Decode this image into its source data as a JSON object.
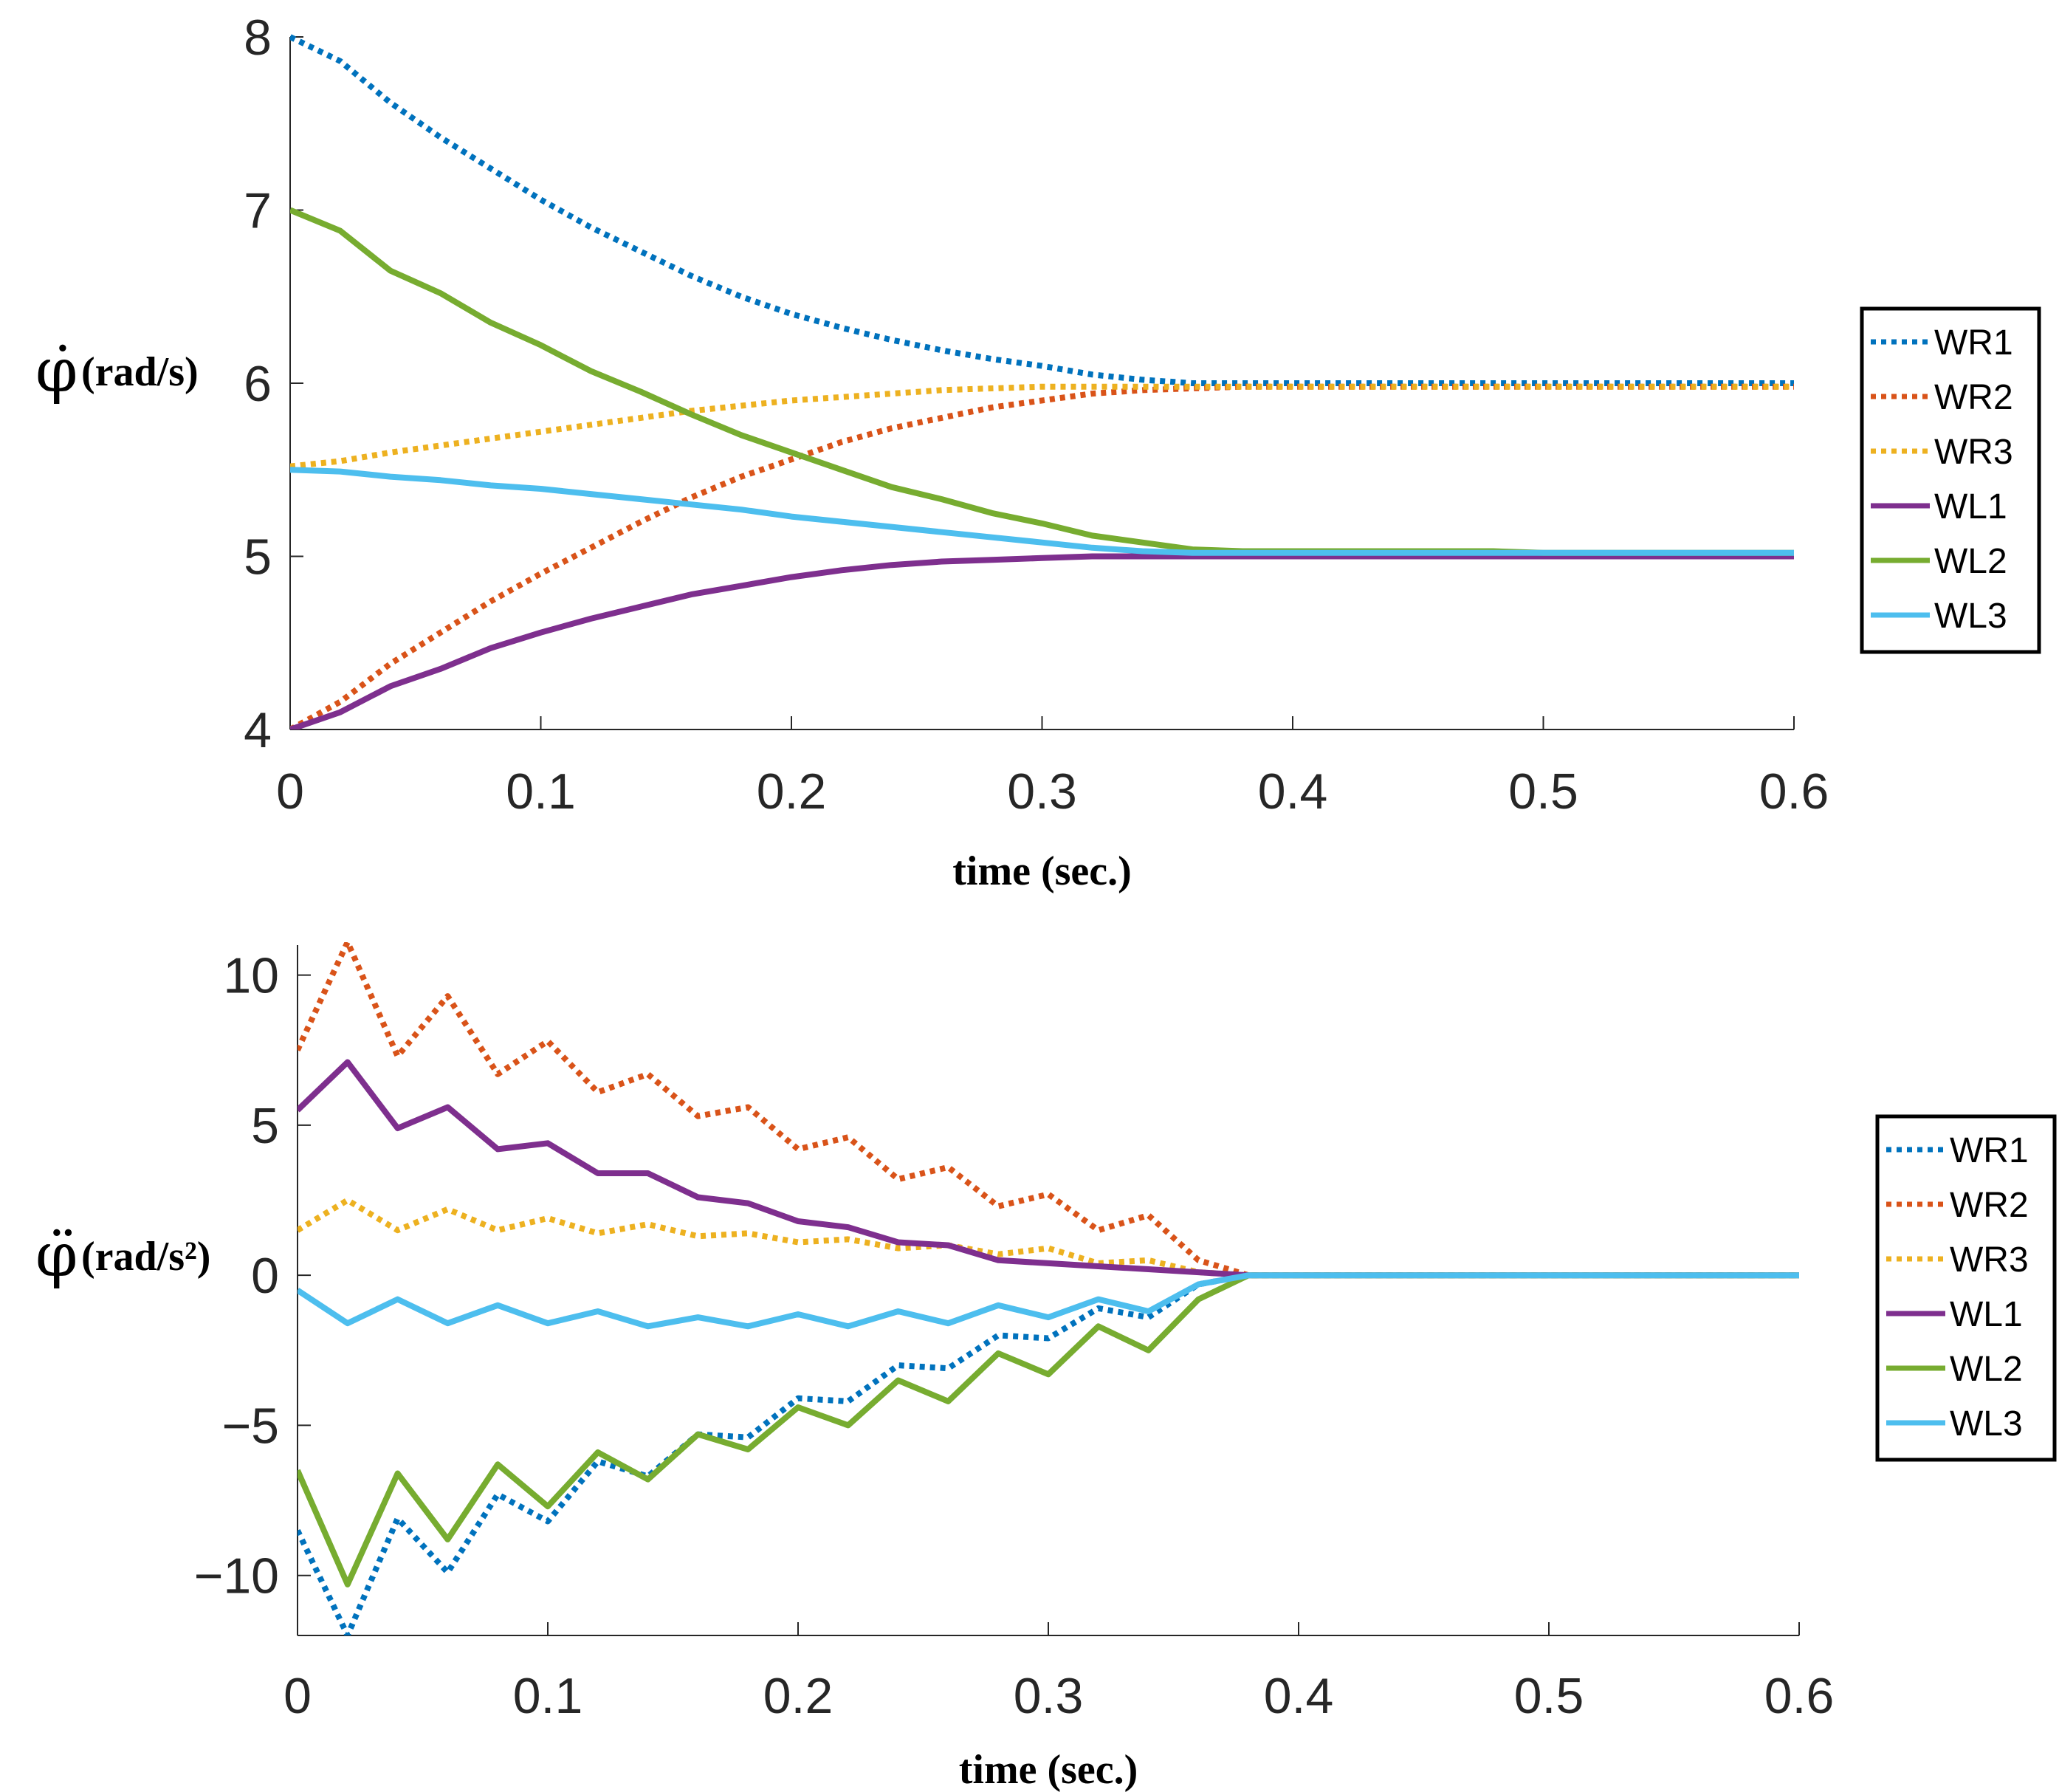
{
  "colors": {
    "WR1": "#0072BD",
    "WR2": "#D95319",
    "WR3": "#EDB120",
    "WL1": "#7E2F8E",
    "WL2": "#77AC30",
    "WL3": "#4DBEEE",
    "axis": "#262626",
    "legend_border": "#000000"
  },
  "chart_data": [
    {
      "type": "line",
      "title": "",
      "xlabel": "time (sec.)",
      "ylabel_symbol": "φ̇",
      "ylabel_unit": "(rad/s)",
      "xlim": [
        0,
        0.6
      ],
      "ylim": [
        4,
        8
      ],
      "xticks": [
        0,
        0.1,
        0.2,
        0.3,
        0.4,
        0.5,
        0.6
      ],
      "xtick_labels": [
        "0",
        "0.1",
        "0.2",
        "0.3",
        "0.4",
        "0.5",
        "0.6"
      ],
      "yticks": [
        4,
        5,
        6,
        7,
        8
      ],
      "ytick_labels": [
        "4",
        "5",
        "6",
        "7",
        "8"
      ],
      "grid": false,
      "legend_position": "right",
      "x": [
        0,
        0.02,
        0.04,
        0.06,
        0.08,
        0.1,
        0.12,
        0.14,
        0.16,
        0.18,
        0.2,
        0.22,
        0.24,
        0.26,
        0.28,
        0.3,
        0.32,
        0.34,
        0.36,
        0.38,
        0.4,
        0.42,
        0.44,
        0.46,
        0.48,
        0.5,
        0.52,
        0.54,
        0.56,
        0.58,
        0.6
      ],
      "series": [
        {
          "name": "WR1",
          "style": "dotted",
          "values": [
            8.0,
            7.86,
            7.62,
            7.42,
            7.24,
            7.06,
            6.9,
            6.76,
            6.62,
            6.5,
            6.4,
            6.32,
            6.25,
            6.19,
            6.14,
            6.1,
            6.05,
            6.02,
            6.0,
            6.0,
            6.0,
            6.0,
            6.0,
            6.0,
            6.0,
            6.0,
            6.0,
            6.0,
            6.0,
            6.0,
            6.0
          ]
        },
        {
          "name": "WR2",
          "style": "dotted",
          "values": [
            4.0,
            4.16,
            4.38,
            4.56,
            4.74,
            4.9,
            5.05,
            5.2,
            5.34,
            5.46,
            5.56,
            5.66,
            5.74,
            5.8,
            5.86,
            5.9,
            5.94,
            5.96,
            5.97,
            5.98,
            5.98,
            5.98,
            5.98,
            5.98,
            5.98,
            5.98,
            5.98,
            5.98,
            5.98,
            5.98,
            5.98
          ]
        },
        {
          "name": "WR3",
          "style": "dotted",
          "values": [
            5.52,
            5.55,
            5.6,
            5.64,
            5.68,
            5.72,
            5.76,
            5.8,
            5.84,
            5.87,
            5.9,
            5.92,
            5.94,
            5.96,
            5.97,
            5.98,
            5.98,
            5.98,
            5.98,
            5.98,
            5.98,
            5.98,
            5.98,
            5.98,
            5.98,
            5.98,
            5.98,
            5.98,
            5.98,
            5.98,
            5.98
          ]
        },
        {
          "name": "WL1",
          "style": "solid",
          "values": [
            4.0,
            4.1,
            4.25,
            4.35,
            4.47,
            4.56,
            4.64,
            4.71,
            4.78,
            4.83,
            4.88,
            4.92,
            4.95,
            4.97,
            4.98,
            4.99,
            5.0,
            5.0,
            5.0,
            5.0,
            5.0,
            5.0,
            5.0,
            5.0,
            5.0,
            5.0,
            5.0,
            5.0,
            5.0,
            5.0,
            5.0
          ]
        },
        {
          "name": "WL2",
          "style": "solid",
          "values": [
            7.0,
            6.88,
            6.65,
            6.52,
            6.35,
            6.22,
            6.07,
            5.95,
            5.82,
            5.7,
            5.6,
            5.5,
            5.4,
            5.33,
            5.25,
            5.19,
            5.12,
            5.08,
            5.04,
            5.03,
            5.03,
            5.03,
            5.03,
            5.03,
            5.03,
            5.02,
            5.02,
            5.02,
            5.02,
            5.02,
            5.02
          ]
        },
        {
          "name": "WL3",
          "style": "solid",
          "values": [
            5.5,
            5.49,
            5.46,
            5.44,
            5.41,
            5.39,
            5.36,
            5.33,
            5.3,
            5.27,
            5.23,
            5.2,
            5.17,
            5.14,
            5.11,
            5.08,
            5.05,
            5.03,
            5.02,
            5.02,
            5.02,
            5.02,
            5.02,
            5.02,
            5.02,
            5.02,
            5.02,
            5.02,
            5.02,
            5.02,
            5.02
          ]
        }
      ]
    },
    {
      "type": "line",
      "title": "",
      "xlabel": "time (sec.)",
      "ylabel_symbol": "φ̈",
      "ylabel_unit": "(rad/s²)",
      "xlim": [
        0,
        0.6
      ],
      "ylim": [
        -12,
        11
      ],
      "xticks": [
        0,
        0.1,
        0.2,
        0.3,
        0.4,
        0.5,
        0.6
      ],
      "xtick_labels": [
        "0",
        "0.1",
        "0.2",
        "0.3",
        "0.4",
        "0.5",
        "0.6"
      ],
      "yticks": [
        -10,
        -5,
        0,
        5,
        10
      ],
      "ytick_labels": [
        "−10",
        "−5",
        "0",
        "5",
        "10"
      ],
      "grid": false,
      "legend_position": "right",
      "x": [
        0,
        0.02,
        0.04,
        0.06,
        0.08,
        0.1,
        0.12,
        0.14,
        0.16,
        0.18,
        0.2,
        0.22,
        0.24,
        0.26,
        0.28,
        0.3,
        0.32,
        0.34,
        0.36,
        0.38,
        0.4,
        0.42,
        0.44,
        0.46,
        0.48,
        0.5,
        0.52,
        0.54,
        0.56,
        0.58,
        0.6
      ],
      "series": [
        {
          "name": "WR1",
          "style": "dotted",
          "values": [
            -8.5,
            -12.0,
            -8.1,
            -9.9,
            -7.3,
            -8.2,
            -6.2,
            -6.7,
            -5.3,
            -5.4,
            -4.1,
            -4.2,
            -3.0,
            -3.1,
            -2.0,
            -2.1,
            -1.1,
            -1.4,
            -0.3,
            0.0,
            0.0,
            0.0,
            0.0,
            0.0,
            0.0,
            0.0,
            0.0,
            0.0,
            0.0,
            0.0,
            0.0
          ]
        },
        {
          "name": "WR2",
          "style": "dotted",
          "values": [
            7.5,
            11.1,
            7.3,
            9.3,
            6.7,
            7.8,
            6.1,
            6.7,
            5.3,
            5.6,
            4.2,
            4.6,
            3.2,
            3.6,
            2.3,
            2.7,
            1.5,
            2.0,
            0.5,
            0.0,
            0.0,
            0.0,
            0.0,
            0.0,
            0.0,
            0.0,
            0.0,
            0.0,
            0.0,
            0.0,
            0.0
          ]
        },
        {
          "name": "WR3",
          "style": "dotted",
          "values": [
            1.5,
            2.5,
            1.5,
            2.2,
            1.5,
            1.9,
            1.4,
            1.7,
            1.3,
            1.4,
            1.1,
            1.2,
            0.9,
            1.0,
            0.7,
            0.9,
            0.4,
            0.5,
            0.1,
            0.0,
            0.0,
            0.0,
            0.0,
            0.0,
            0.0,
            0.0,
            0.0,
            0.0,
            0.0,
            0.0,
            0.0
          ]
        },
        {
          "name": "WL1",
          "style": "solid",
          "values": [
            5.5,
            7.1,
            4.9,
            5.6,
            4.2,
            4.4,
            3.4,
            3.4,
            2.6,
            2.4,
            1.8,
            1.6,
            1.1,
            1.0,
            0.5,
            0.4,
            0.3,
            0.2,
            0.1,
            0.0,
            0.0,
            0.0,
            0.0,
            0.0,
            0.0,
            0.0,
            0.0,
            0.0,
            0.0,
            0.0,
            0.0
          ]
        },
        {
          "name": "WL2",
          "style": "solid",
          "values": [
            -6.5,
            -10.3,
            -6.6,
            -8.8,
            -6.3,
            -7.7,
            -5.9,
            -6.8,
            -5.3,
            -5.8,
            -4.4,
            -5.0,
            -3.5,
            -4.2,
            -2.6,
            -3.3,
            -1.7,
            -2.5,
            -0.8,
            0.0,
            0.0,
            0.0,
            0.0,
            0.0,
            0.0,
            0.0,
            0.0,
            0.0,
            0.0,
            0.0,
            0.0
          ]
        },
        {
          "name": "WL3",
          "style": "solid",
          "values": [
            -0.5,
            -1.6,
            -0.8,
            -1.6,
            -1.0,
            -1.6,
            -1.2,
            -1.7,
            -1.4,
            -1.7,
            -1.3,
            -1.7,
            -1.2,
            -1.6,
            -1.0,
            -1.4,
            -0.8,
            -1.2,
            -0.3,
            0.0,
            0.0,
            0.0,
            0.0,
            0.0,
            0.0,
            0.0,
            0.0,
            0.0,
            0.0,
            0.0,
            0.0
          ]
        }
      ]
    }
  ]
}
